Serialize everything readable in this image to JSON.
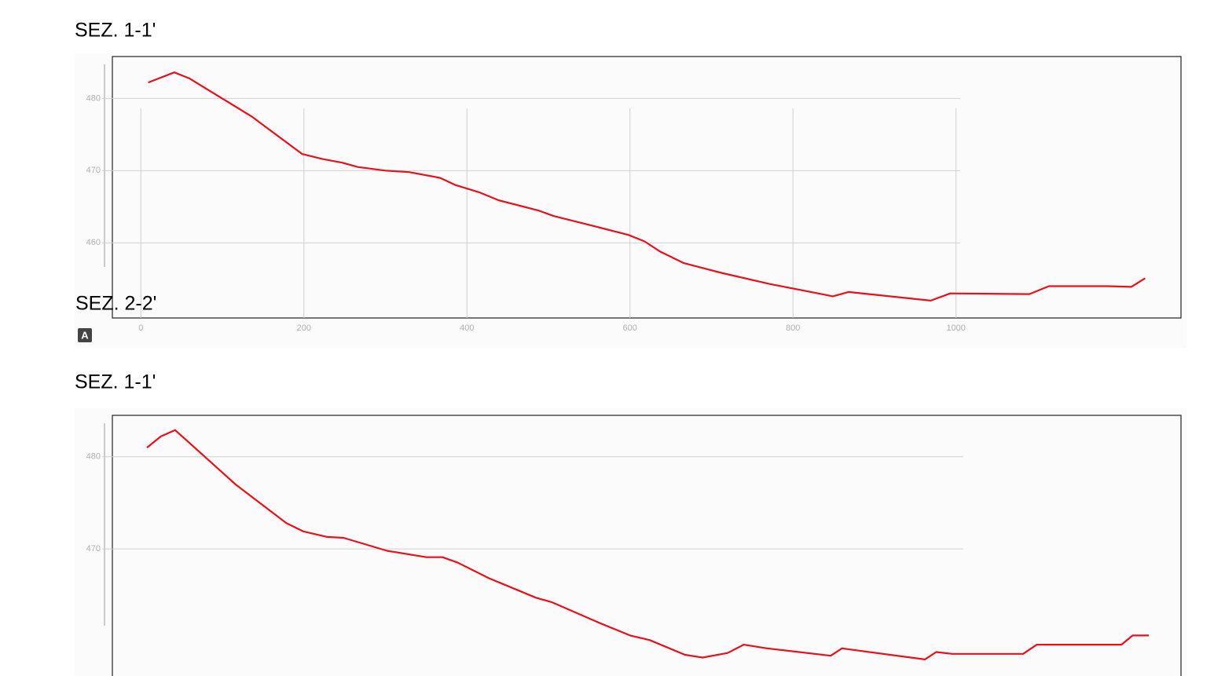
{
  "chart_data": [
    {
      "type": "line",
      "title": "SEZ. 1-1'",
      "x": [
        9,
        41,
        59,
        107,
        136,
        155,
        198,
        223,
        247,
        266,
        300,
        329,
        367,
        386,
        415,
        439,
        487,
        507,
        560,
        598,
        618,
        637,
        666,
        714,
        772,
        849,
        868,
        969,
        993,
        1090,
        1114,
        1186,
        1215,
        1232
      ],
      "series": [
        {
          "color": "#e8101a",
          "values": [
            482.2,
            483.6,
            482.8,
            479.5,
            477.5,
            475.9,
            472.3,
            471.6,
            471.1,
            470.5,
            470.0,
            469.8,
            469.0,
            468.0,
            467.0,
            465.9,
            464.5,
            463.7,
            462.2,
            461.1,
            460.2,
            458.8,
            457.2,
            455.8,
            454.3,
            452.6,
            453.2,
            452.0,
            453.0,
            452.9,
            454.0,
            454.0,
            453.9,
            455.1
          ]
        }
      ],
      "xlim": [
        -35,
        1276
      ],
      "xticks": [
        0,
        200,
        400,
        600,
        800,
        1000
      ],
      "ylim": [
        449.6,
        485.8
      ],
      "yticks": [
        460,
        470,
        480
      ],
      "grid": true
    },
    {
      "type": "line",
      "title": "SEZ. 1-1'",
      "x": [
        8,
        25,
        43,
        99,
        118,
        181,
        202,
        232,
        252,
        306,
        355,
        375,
        394,
        433,
        491,
        511,
        569,
        608,
        632,
        676,
        698,
        729,
        749,
        778,
        857,
        871,
        974,
        988,
        1008,
        1096,
        1113,
        1218,
        1232,
        1252
      ],
      "series": [
        {
          "color": "#e8101a",
          "values": [
            481.0,
            482.2,
            482.9,
            478.5,
            477.0,
            472.8,
            471.9,
            471.3,
            471.2,
            469.8,
            469.1,
            469.1,
            468.5,
            466.8,
            464.7,
            464.2,
            462.0,
            460.6,
            460.1,
            458.5,
            458.2,
            458.7,
            459.6,
            459.2,
            458.4,
            459.2,
            458.0,
            458.8,
            458.6,
            458.6,
            459.6,
            459.6,
            460.6,
            460.6
          ]
        }
      ],
      "xlim": [
        -35,
        1292
      ],
      "ylim": [
        456.2,
        484.5
      ],
      "yticks": [
        470,
        480
      ],
      "grid": true
    }
  ],
  "overlay": {
    "label": "SEZ. 2-2'",
    "badge": "A"
  }
}
